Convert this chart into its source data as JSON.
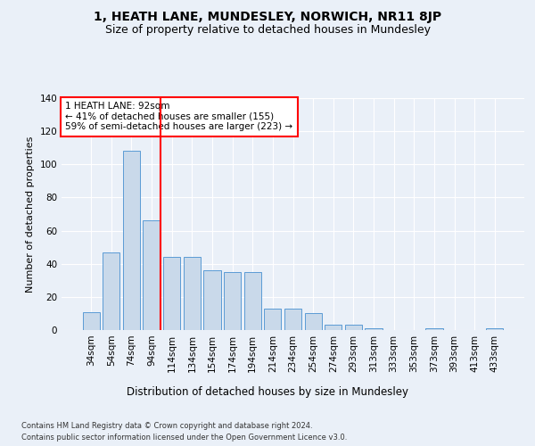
{
  "title": "1, HEATH LANE, MUNDESLEY, NORWICH, NR11 8JP",
  "subtitle": "Size of property relative to detached houses in Mundesley",
  "xlabel": "Distribution of detached houses by size in Mundesley",
  "ylabel": "Number of detached properties",
  "bar_labels": [
    "34sqm",
    "54sqm",
    "74sqm",
    "94sqm",
    "114sqm",
    "134sqm",
    "154sqm",
    "174sqm",
    "194sqm",
    "214sqm",
    "234sqm",
    "254sqm",
    "274sqm",
    "293sqm",
    "313sqm",
    "333sqm",
    "353sqm",
    "373sqm",
    "393sqm",
    "413sqm",
    "433sqm"
  ],
  "bar_values": [
    11,
    47,
    108,
    66,
    44,
    44,
    36,
    35,
    35,
    13,
    13,
    10,
    3,
    3,
    1,
    0,
    0,
    1,
    0,
    0,
    1
  ],
  "bar_color": "#c9d9ea",
  "bar_edge_color": "#5b9bd5",
  "red_line_index": 3,
  "annotation_text": "1 HEATH LANE: 92sqm\n← 41% of detached houses are smaller (155)\n59% of semi-detached houses are larger (223) →",
  "annotation_box_color": "white",
  "annotation_box_edge_color": "red",
  "ylim": [
    0,
    140
  ],
  "yticks": [
    0,
    20,
    40,
    60,
    80,
    100,
    120,
    140
  ],
  "title_fontsize": 10,
  "subtitle_fontsize": 9,
  "xlabel_fontsize": 8.5,
  "ylabel_fontsize": 8,
  "tick_fontsize": 7.5,
  "annot_fontsize": 7.5,
  "footer_fontsize": 6,
  "footer_line1": "Contains HM Land Registry data © Crown copyright and database right 2024.",
  "footer_line2": "Contains public sector information licensed under the Open Government Licence v3.0.",
  "bg_color": "#eaf0f8",
  "plot_bg_color": "#eaf0f8"
}
